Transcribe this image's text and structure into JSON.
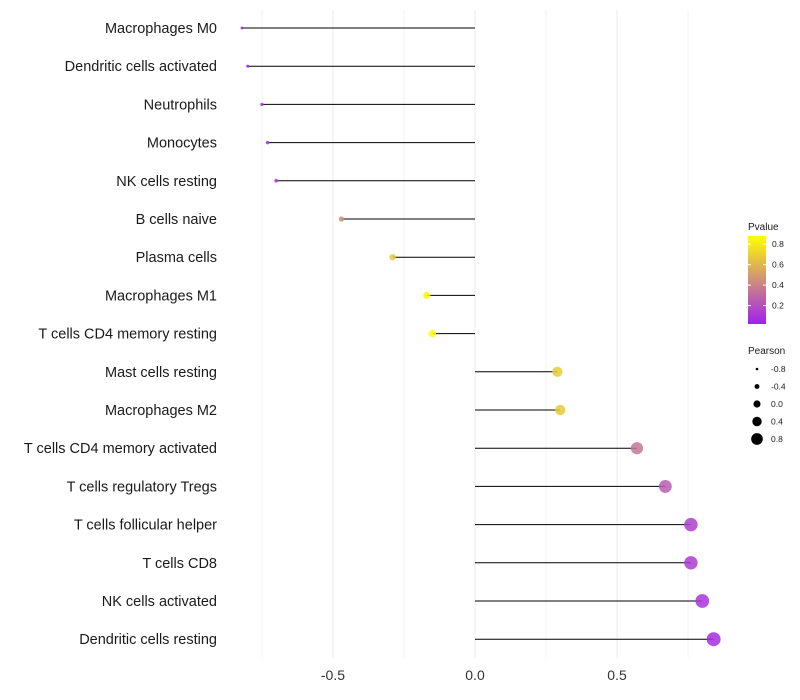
{
  "chart_data": {
    "type": "lollipop",
    "title": "",
    "xlabel": "",
    "ylabel": "",
    "xlim": [
      -0.88,
      0.88
    ],
    "x_ticks": [
      -0.5,
      0.0,
      0.5
    ],
    "x_tick_labels": [
      "-0.5",
      "0.0",
      "0.5"
    ],
    "grid": true,
    "categories": [
      "Macrophages M0",
      "Dendritic cells activated",
      "Neutrophils",
      "Monocytes",
      "NK cells resting",
      "B cells naive",
      "Plasma cells",
      "Macrophages M1",
      "T cells CD4 memory resting",
      "Mast cells resting",
      "Macrophages M2",
      "T cells CD4 memory activated",
      "T cells regulatory  Tregs",
      "T cells follicular helper",
      "T cells CD8",
      "NK cells activated",
      "Dendritic cells resting"
    ],
    "pearson": [
      -0.82,
      -0.8,
      -0.75,
      -0.73,
      -0.7,
      -0.47,
      -0.29,
      -0.17,
      -0.15,
      0.29,
      0.3,
      0.57,
      0.67,
      0.76,
      0.76,
      0.8,
      0.84
    ],
    "pvalue": [
      0.03,
      0.05,
      0.09,
      0.1,
      0.13,
      0.45,
      0.68,
      0.85,
      0.87,
      0.68,
      0.67,
      0.35,
      0.25,
      0.14,
      0.13,
      0.1,
      0.07
    ],
    "legend_pvalue": {
      "title": "Pvalue",
      "ticks": [
        0.2,
        0.4,
        0.6,
        0.8
      ],
      "tick_labels": [
        "0.2",
        "0.4",
        "0.6",
        "0.8"
      ],
      "range": [
        0.02,
        0.88
      ],
      "low_color": "#a020f0",
      "high_color": "#ffff00"
    },
    "legend_pearson": {
      "title": "Pearson",
      "ticks": [
        -0.8,
        -0.4,
        0.0,
        0.4,
        0.8
      ],
      "tick_labels": [
        "-0.8",
        "-0.4",
        "0.0",
        "0.4",
        "0.8"
      ]
    },
    "legend_position": "right"
  }
}
